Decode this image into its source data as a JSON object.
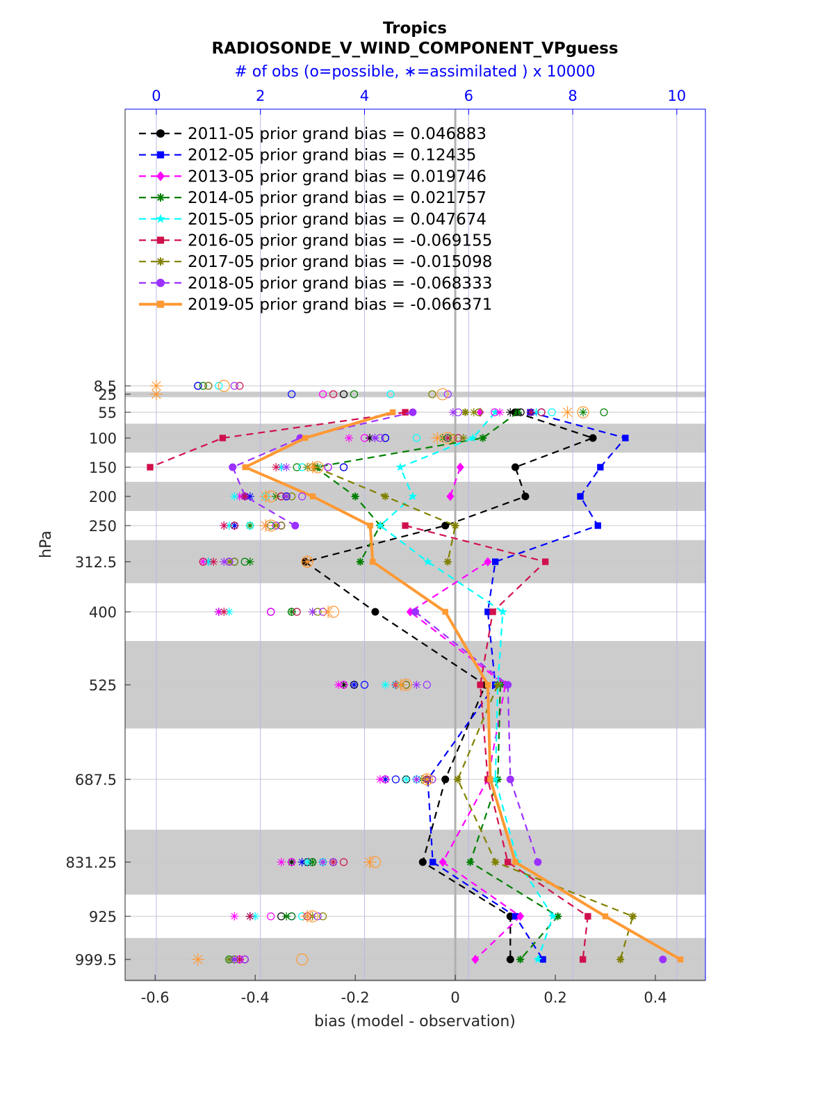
{
  "chart_data": {
    "type": "line",
    "title": "Tropics",
    "subtitle": "RADIOSONDE_V_WIND_COMPONENT_VPguess",
    "top_axis_label": "# of obs (o=possible, ∗=assimilated ) x 10000",
    "xlabel": "bias (model - observation)",
    "ylabel": "hPa",
    "xlim": [
      -0.66,
      0.5
    ],
    "top_xlim": [
      -0.6,
      10.55
    ],
    "x_ticks": [
      "-0.6",
      "-0.4",
      "-0.2",
      "0",
      "0.2",
      "0.4"
    ],
    "x_tick_values": [
      -0.6,
      -0.4,
      -0.2,
      0,
      0.2,
      0.4
    ],
    "top_ticks": [
      "0",
      "2",
      "4",
      "6",
      "8",
      "10"
    ],
    "top_tick_values": [
      0,
      2,
      4,
      6,
      8,
      10
    ],
    "levels": [
      "8.5",
      "25",
      "55",
      "100",
      "150",
      "200",
      "250",
      "312.5",
      "400",
      "525",
      "687.5",
      "831.25",
      "925",
      "999.5"
    ],
    "level_values": [
      8.5,
      25,
      55,
      100,
      150,
      200,
      250,
      312.5,
      400,
      525,
      687.5,
      831.25,
      925,
      999.5
    ],
    "shaded_bands": [
      [
        20,
        30
      ],
      [
        75,
        125
      ],
      [
        175,
        225
      ],
      [
        275,
        350
      ],
      [
        450,
        600
      ],
      [
        775,
        887.5
      ],
      [
        962.5,
        1037.5
      ]
    ],
    "legend_placement": "top-left",
    "grid": true,
    "series": [
      {
        "name": "2011-05 prior grand bias = 0.046883",
        "color": "#000000",
        "marker": "circle",
        "bias": [
          null,
          null,
          0.12,
          0.275,
          0.12,
          0.14,
          -0.02,
          -0.3,
          -0.16,
          0.06,
          -0.02,
          -0.065,
          0.11,
          0.11
        ],
        "obs_possible": [
          0.8,
          3.6,
          7.0,
          4.4,
          3.6,
          2.5,
          2.4,
          1.5,
          2.2,
          3.8,
          4.8,
          2.9,
          2.4,
          1.7
        ],
        "obs_assimilated": [
          null,
          null,
          6.8,
          4.1,
          2.4,
          1.7,
          1.5,
          1.0,
          1.2,
          3.6,
          4.4,
          2.6,
          1.8,
          1.6
        ]
      },
      {
        "name": "2012-05 prior grand bias = 0.12435",
        "color": "#0000ff",
        "marker": "square",
        "bias": [
          null,
          null,
          0.15,
          0.34,
          0.29,
          0.25,
          0.285,
          0.08,
          0.065,
          0.08,
          -0.055,
          -0.045,
          0.12,
          0.175
        ],
        "obs_possible": [
          0.8,
          2.6,
          7.4,
          4.4,
          3.6,
          2.5,
          2.4,
          1.5,
          2.2,
          4.0,
          4.6,
          3.0,
          2.6,
          1.6
        ],
        "obs_assimilated": [
          null,
          null,
          7.2,
          4.2,
          2.4,
          1.8,
          1.5,
          1.0,
          1.2,
          3.8,
          4.4,
          2.8,
          1.8,
          1.5
        ]
      },
      {
        "name": "2013-05 prior grand bias = 0.019746",
        "color": "#ff00ff",
        "marker": "diamond",
        "bias": [
          null,
          null,
          0.05,
          null,
          0.01,
          -0.01,
          null,
          0.065,
          -0.09,
          0.1,
          0.065,
          -0.025,
          0.13,
          0.04
        ],
        "obs_possible": [
          1.0,
          3.2,
          6.5,
          4.0,
          3.3,
          2.4,
          2.4,
          1.4,
          2.2,
          3.6,
          4.4,
          2.6,
          2.2,
          1.6
        ],
        "obs_assimilated": [
          null,
          null,
          6.6,
          3.7,
          2.4,
          1.6,
          1.3,
          0.9,
          1.2,
          3.5,
          4.3,
          2.4,
          1.5,
          1.6
        ]
      },
      {
        "name": "2014-05 prior grand bias = 0.021757",
        "color": "#008000",
        "marker": "star",
        "bias": [
          null,
          null,
          0.125,
          0.055,
          -0.28,
          -0.2,
          -0.15,
          -0.19,
          null,
          0.09,
          0.085,
          0.03,
          0.205,
          0.13
        ],
        "obs_possible": [
          0.9,
          3.8,
          8.6,
          5.6,
          2.7,
          2.4,
          2.2,
          1.7,
          2.6,
          4.8,
          5.2,
          3.0,
          2.6,
          1.4
        ],
        "obs_assimilated": [
          null,
          null,
          8.2,
          5.5,
          3.1,
          2.3,
          1.8,
          1.8,
          2.6,
          4.7,
          5.1,
          3.0,
          2.5,
          1.4
        ]
      },
      {
        "name": "2015-05 prior grand bias = 0.047674",
        "color": "#00ffff",
        "marker": "pentagram",
        "bias": [
          null,
          null,
          0.08,
          0.035,
          -0.11,
          -0.085,
          -0.15,
          -0.055,
          0.095,
          0.085,
          0.08,
          0.125,
          0.195,
          0.165
        ],
        "obs_possible": [
          1.2,
          4.5,
          7.6,
          5.0,
          2.8,
          2.1,
          1.8,
          1.5,
          2.7,
          4.6,
          5.0,
          3.2,
          2.8,
          1.5
        ],
        "obs_assimilated": [
          null,
          null,
          7.3,
          5.6,
          2.4,
          1.5,
          1.4,
          1.0,
          1.4,
          4.4,
          4.8,
          2.9,
          1.9,
          1.4
        ]
      },
      {
        "name": "2016-05 prior grand bias = -0.069155",
        "color": "#d0104c",
        "marker": "square",
        "bias": [
          null,
          null,
          -0.1,
          -0.465,
          -0.61,
          null,
          -0.1,
          0.18,
          0.075,
          0.05,
          0.065,
          0.105,
          0.265,
          0.255
        ],
        "obs_possible": [
          1.6,
          3.4,
          7.4,
          5.8,
          3.3,
          2.4,
          1.5,
          0.9,
          2.7,
          4.8,
          5.2,
          3.6,
          2.9,
          1.7
        ],
        "obs_assimilated": [
          null,
          null,
          7.2,
          5.6,
          2.3,
          1.7,
          1.3,
          1.1,
          1.3,
          4.6,
          5.0,
          3.4,
          1.8,
          1.6
        ]
      },
      {
        "name": "2017-05 prior grand bias = -0.015098",
        "color": "#808000",
        "marker": "star",
        "bias": [
          null,
          null,
          0.02,
          null,
          -0.28,
          -0.14,
          0,
          -0.015,
          null,
          0.085,
          0.005,
          0.08,
          0.355,
          0.33
        ],
        "obs_possible": [
          1.0,
          5.3,
          6.2,
          5.7,
          3.0,
          2.6,
          2.4,
          1.5,
          3.1,
          4.8,
          5.3,
          3.4,
          3.2,
          1.5
        ],
        "obs_assimilated": [
          null,
          null,
          6.1,
          5.9,
          2.9,
          2.5,
          2.3,
          1.4,
          3.0,
          4.7,
          5.2,
          3.2,
          3.0,
          1.4
        ]
      },
      {
        "name": "2018-05 prior grand bias = -0.068333",
        "color": "#9b30ff",
        "marker": "circle",
        "bias": [
          null,
          null,
          -0.085,
          -0.31,
          -0.445,
          -0.42,
          -0.32,
          null,
          -0.08,
          0.105,
          0.11,
          0.165,
          null,
          0.415
        ],
        "obs_possible": [
          1.5,
          5.6,
          5.8,
          4.3,
          3.3,
          2.8,
          2.3,
          1.4,
          3.2,
          5.2,
          5.3,
          3.4,
          3.1,
          1.7
        ],
        "obs_assimilated": [
          null,
          null,
          5.7,
          4.2,
          2.5,
          2.5,
          2.1,
          1.3,
          3.0,
          5.0,
          5.0,
          3.2,
          2.9,
          1.5
        ]
      },
      {
        "name": "2019-05 prior grand bias = -0.066371",
        "color": "#ff9933",
        "marker": "square",
        "bias": [
          null,
          null,
          -0.125,
          -0.3,
          -0.42,
          -0.285,
          -0.17,
          -0.165,
          -0.02,
          0.065,
          0.07,
          0.12,
          0.3,
          0.45
        ],
        "obs_possible": [
          1.3,
          5.5,
          8.2,
          5.6,
          3.1,
          2.2,
          2.2,
          2.9,
          3.4,
          4.8,
          5.2,
          4.2,
          3.0,
          2.8
        ],
        "obs_assimilated": [
          0.0,
          0.0,
          7.9,
          5.4,
          3.0,
          2.1,
          2.1,
          2.9,
          3.3,
          4.7,
          5.2,
          4.1,
          2.9,
          0.8
        ]
      }
    ]
  }
}
